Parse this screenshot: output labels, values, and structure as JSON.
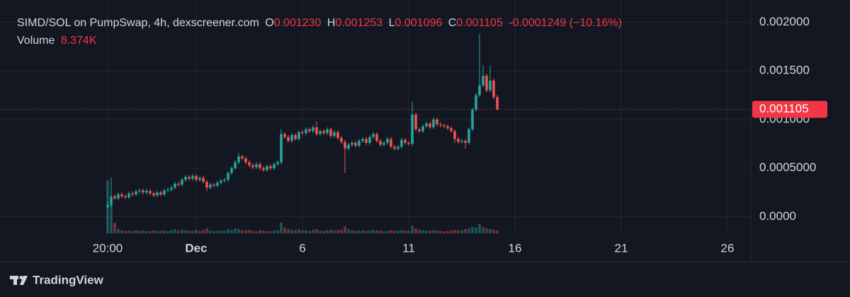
{
  "chart_data": {
    "type": "candlestick",
    "title": "SIMD/SOL on PumpSwap, 4h, dexscreener.com",
    "legend": {
      "open_label": "O",
      "open": "0.001230",
      "high_label": "H",
      "high": "0.001253",
      "low_label": "L",
      "low": "0.001096",
      "close_label": "C",
      "close": "0.001105",
      "change": "-0.0001249 (−10.16%)"
    },
    "volume_label": "Volume",
    "volume_value": "8.374K",
    "last_price_label": "0.001105",
    "brand": "TradingView",
    "up_color": "#26a69a",
    "down_color": "#ef5350",
    "grid": true,
    "xlim": [
      -8.2333,
      27.1
    ],
    "xticks": [
      {
        "value": -3.1667,
        "label": "20:00"
      },
      {
        "value": 1,
        "label": "Dec"
      },
      6,
      11,
      16,
      21,
      26
    ],
    "ylim": [
      -0.0002,
      0.0022
    ],
    "yticks": [
      {
        "value": 0.002,
        "label": "0.002000"
      },
      {
        "value": 0.0015,
        "label": "0.001500"
      },
      {
        "value": 0.001,
        "label": "0.001000"
      },
      {
        "value": 0.0005,
        "label": "0.0005000"
      },
      {
        "value": 0,
        "label": "0.0000"
      }
    ],
    "volume_lim": [
      0,
      660000
    ],
    "x": [
      -3.1667,
      -3,
      -2.8333,
      -2.6667,
      -2.5,
      -2.3333,
      -2.1667,
      -2,
      -1.8333,
      -1.6667,
      -1.5,
      -1.3333,
      -1.1667,
      -1,
      -0.8333,
      -0.6667,
      -0.5,
      -0.3333,
      -0.1667,
      0,
      0.1667,
      0.3333,
      0.5,
      0.6667,
      0.8333,
      1,
      1.1667,
      1.3333,
      1.5,
      1.6667,
      1.8333,
      2,
      2.1667,
      2.3333,
      2.5,
      2.6667,
      2.8333,
      3,
      3.1667,
      3.3333,
      3.5,
      3.6667,
      3.8333,
      4,
      4.1667,
      4.3333,
      4.5,
      4.6667,
      4.8333,
      5,
      5.1667,
      5.3333,
      5.5,
      5.6667,
      5.8333,
      6,
      6.1667,
      6.3333,
      6.5,
      6.6667,
      6.8333,
      7,
      7.1667,
      7.3333,
      7.5,
      7.6667,
      7.8333,
      8,
      8.1667,
      8.3333,
      8.5,
      8.6667,
      8.8333,
      9,
      9.1667,
      9.3333,
      9.5,
      9.6667,
      9.8333,
      10,
      10.1667,
      10.3333,
      10.5,
      10.6667,
      10.8333,
      11,
      11.1667,
      11.3333,
      11.5,
      11.6667,
      11.8333,
      12,
      12.1667,
      12.3333,
      12.5,
      12.6667,
      12.8333,
      13,
      13.1667,
      13.3333,
      13.5,
      13.6667,
      13.8333,
      14,
      14.1667,
      14.3333,
      14.5,
      14.6667,
      14.8333,
      15,
      15.1667
    ],
    "open": [
      0.0001,
      0.00012,
      0.00021,
      0.00019,
      0.00023,
      0.00021,
      0.0002,
      0.00024,
      0.00023,
      0.00026,
      0.00027,
      0.00025,
      0.000265,
      0.00024,
      0.00022,
      0.00025,
      0.00023,
      0.00027,
      0.00028,
      0.0003,
      0.00034,
      0.00033,
      0.00038,
      0.00041,
      0.00039,
      0.00042,
      0.00038,
      0.0004,
      0.00036,
      0.0003,
      0.00033,
      0.00032,
      0.00035,
      0.00037,
      0.00038,
      0.00045,
      0.0005,
      0.00056,
      0.00062,
      0.0006,
      0.00056,
      0.00053,
      0.00051,
      0.00054,
      0.0005,
      0.00048,
      0.00052,
      0.0005,
      0.00054,
      0.00056,
      0.00085,
      0.00082,
      0.00078,
      0.00084,
      0.0008,
      0.00087,
      0.00086,
      0.0009,
      0.00088,
      0.00092,
      0.00085,
      0.00088,
      0.00086,
      0.0009,
      0.00083,
      0.00087,
      0.00081,
      0.00077,
      0.0007,
      0.00074,
      0.00076,
      0.00073,
      0.00078,
      0.0008,
      0.00076,
      0.00082,
      0.00085,
      0.00078,
      0.00074,
      0.00076,
      0.0008,
      0.00072,
      0.0007,
      0.00072,
      0.00079,
      0.00076,
      0.00075,
      0.00105,
      0.0009,
      0.00088,
      0.00093,
      0.00096,
      0.00092,
      0.001,
      0.00095,
      0.00094,
      0.00093,
      0.00091,
      0.00088,
      0.0008,
      0.00077,
      0.00078,
      0.00076,
      0.0009,
      0.0011,
      0.00125,
      0.00135,
      0.00145,
      0.0013,
      0.0014,
      0.00123
    ],
    "high": [
      0.00015,
      0.0004,
      0.00023,
      0.00025,
      0.00025,
      0.00023,
      0.00026,
      0.00026,
      0.00028,
      0.00029,
      0.00029,
      0.000285,
      0.000285,
      0.00026,
      0.00027,
      0.00027,
      0.00029,
      0.0003,
      0.00032,
      0.00036,
      0.00036,
      0.0004,
      0.00043,
      0.00043,
      0.00044,
      0.00044,
      0.00042,
      0.00042,
      0.00038,
      0.00035,
      0.00035,
      0.00037,
      0.00039,
      0.0004,
      0.00047,
      0.00052,
      0.00058,
      0.00066,
      0.00064,
      0.00062,
      0.00058,
      0.00055,
      0.00056,
      0.00056,
      0.00052,
      0.00054,
      0.00054,
      0.00056,
      0.00058,
      0.0009,
      0.00087,
      0.00084,
      0.00086,
      0.00086,
      0.00089,
      0.00089,
      0.00092,
      0.00092,
      0.00094,
      0.00098,
      0.0009,
      0.0009,
      0.00092,
      0.00092,
      0.00089,
      0.00089,
      0.00083,
      0.00079,
      0.00076,
      0.00078,
      0.00078,
      0.0008,
      0.00082,
      0.00082,
      0.00084,
      0.00087,
      0.00087,
      0.0008,
      0.00078,
      0.00082,
      0.00082,
      0.00074,
      0.00074,
      0.00081,
      0.00081,
      0.00078,
      0.00118,
      0.00107,
      0.00092,
      0.00095,
      0.00098,
      0.00098,
      0.00102,
      0.00102,
      0.00097,
      0.00096,
      0.00095,
      0.00093,
      0.0009,
      0.00082,
      0.0008,
      0.0008,
      0.00092,
      0.00112,
      0.00127,
      0.00188,
      0.00156,
      0.00147,
      0.00155,
      0.00142,
      0.001253
    ],
    "low": [
      8e-05,
      0.0001,
      0.00017,
      0.00017,
      0.00019,
      0.00018,
      0.00018,
      0.00021,
      0.00021,
      0.00024,
      0.00023,
      0.00023,
      0.00022,
      0.0002,
      0.0002,
      0.00021,
      0.00021,
      0.00025,
      0.00026,
      0.00028,
      0.00031,
      0.00031,
      0.00036,
      0.00037,
      0.00037,
      0.00036,
      0.00036,
      0.00034,
      0.00026,
      0.00028,
      0.0003,
      0.0003,
      0.00033,
      0.00035,
      0.00036,
      0.00043,
      0.00048,
      0.00054,
      0.00058,
      0.00054,
      0.00051,
      0.00049,
      0.00049,
      0.00048,
      0.00046,
      0.00046,
      0.00048,
      0.00048,
      0.00052,
      0.00054,
      0.0008,
      0.00076,
      0.00076,
      0.00078,
      0.00078,
      0.00084,
      0.00084,
      0.00086,
      0.00086,
      0.00083,
      0.00083,
      0.00084,
      0.00084,
      0.00081,
      0.00081,
      0.00079,
      0.00075,
      0.00045,
      0.00068,
      0.00072,
      0.00071,
      0.00071,
      0.00076,
      0.00074,
      0.00074,
      0.0008,
      0.00076,
      0.00072,
      0.00072,
      0.00074,
      0.0007,
      0.00068,
      0.00068,
      0.0007,
      0.00074,
      0.00073,
      0.00073,
      0.00088,
      0.00086,
      0.00086,
      0.00091,
      0.0009,
      0.0009,
      0.00093,
      0.00092,
      0.00091,
      0.00089,
      0.00086,
      0.00076,
      0.00075,
      0.00075,
      0.0007,
      0.00074,
      0.00088,
      0.00108,
      0.00123,
      0.00133,
      0.00128,
      0.00128,
      0.00121,
      0.001096
    ],
    "close": [
      0.00012,
      0.00021,
      0.00019,
      0.00023,
      0.00021,
      0.0002,
      0.00024,
      0.00023,
      0.00026,
      0.00027,
      0.00025,
      0.000265,
      0.00024,
      0.00022,
      0.00025,
      0.00023,
      0.00027,
      0.00028,
      0.0003,
      0.00034,
      0.00033,
      0.00038,
      0.00041,
      0.00039,
      0.00042,
      0.00038,
      0.0004,
      0.00036,
      0.0003,
      0.00033,
      0.00032,
      0.00035,
      0.00037,
      0.00038,
      0.00045,
      0.0005,
      0.00056,
      0.00062,
      0.0006,
      0.00056,
      0.00053,
      0.00051,
      0.00054,
      0.0005,
      0.00048,
      0.00052,
      0.0005,
      0.00054,
      0.00056,
      0.00085,
      0.00082,
      0.00078,
      0.00084,
      0.0008,
      0.00087,
      0.00086,
      0.0009,
      0.00088,
      0.00092,
      0.00085,
      0.00088,
      0.00086,
      0.0009,
      0.00083,
      0.00087,
      0.00081,
      0.00077,
      0.0007,
      0.00074,
      0.00076,
      0.00073,
      0.00078,
      0.0008,
      0.00076,
      0.00082,
      0.00085,
      0.00078,
      0.00074,
      0.00076,
      0.0008,
      0.00072,
      0.0007,
      0.00072,
      0.00079,
      0.00076,
      0.00075,
      0.00105,
      0.0009,
      0.00088,
      0.00093,
      0.00096,
      0.00092,
      0.001,
      0.00095,
      0.00094,
      0.00093,
      0.00091,
      0.00088,
      0.0008,
      0.00077,
      0.00078,
      0.00076,
      0.0009,
      0.0011,
      0.00125,
      0.00135,
      0.00145,
      0.0013,
      0.0014,
      0.00123,
      0.001105
    ],
    "volume": [
      150000,
      80000,
      30000,
      12000,
      9000,
      7000,
      8000,
      6000,
      9000,
      7000,
      8000,
      6000,
      7000,
      9000,
      6000,
      7000,
      8000,
      6000,
      9000,
      12000,
      8000,
      10000,
      9000,
      7000,
      8000,
      10000,
      7000,
      9000,
      14000,
      8000,
      6000,
      7000,
      8000,
      7000,
      12000,
      10000,
      14000,
      12000,
      9000,
      8000,
      10000,
      7000,
      6000,
      9000,
      8000,
      7000,
      6000,
      8000,
      9000,
      30000,
      16000,
      12000,
      10000,
      9000,
      11000,
      8000,
      9000,
      7000,
      10000,
      12000,
      8000,
      7000,
      9000,
      10000,
      8000,
      9000,
      10000,
      20000,
      12000,
      9000,
      7000,
      8000,
      9000,
      7000,
      8000,
      10000,
      9000,
      8000,
      6000,
      7000,
      9000,
      8000,
      7000,
      9000,
      8000,
      7000,
      22000,
      14000,
      10000,
      9000,
      8000,
      7000,
      9000,
      8000,
      7000,
      6000,
      7000,
      8000,
      10000,
      9000,
      8000,
      12000,
      14000,
      18000,
      16000,
      26000,
      18000,
      14000,
      12000,
      10000,
      8374
    ]
  }
}
